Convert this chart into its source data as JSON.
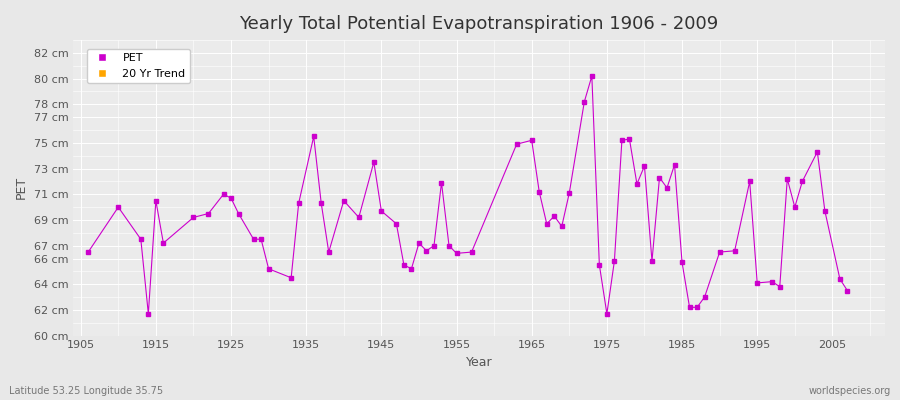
{
  "title": "Yearly Total Potential Evapotranspiration 1906 - 2009",
  "xlabel": "Year",
  "ylabel": "PET",
  "footer_left": "Latitude 53.25 Longitude 35.75",
  "footer_right": "worldspecies.org",
  "background_color": "#e8e8e8",
  "plot_bg_color": "#ebebeb",
  "grid_color": "#ffffff",
  "pet_color": "#cc00cc",
  "trend_color": "#ffa500",
  "ylim": [
    60,
    83
  ],
  "yticks": [
    60,
    62,
    64,
    66,
    67,
    69,
    71,
    73,
    75,
    77,
    78,
    80,
    82
  ],
  "ytick_labels": [
    "60 cm",
    "62 cm",
    "64 cm",
    "66 cm",
    "67 cm",
    "69 cm",
    "71 cm",
    "73 cm",
    "75 cm",
    "77 cm",
    "78 cm",
    "80 cm",
    "82 cm"
  ],
  "xlim": [
    1904,
    2012
  ],
  "xticks": [
    1905,
    1915,
    1925,
    1935,
    1945,
    1955,
    1965,
    1975,
    1985,
    1995,
    2005
  ],
  "years": [
    1906,
    1910,
    1913,
    1914,
    1915,
    1916,
    1920,
    1922,
    1924,
    1925,
    1926,
    1928,
    1929,
    1930,
    1933,
    1934,
    1936,
    1937,
    1938,
    1940,
    1942,
    1944,
    1945,
    1947,
    1948,
    1949,
    1950,
    1951,
    1952,
    1953,
    1954,
    1955,
    1957,
    1963,
    1965,
    1966,
    1967,
    1968,
    1969,
    1970,
    1972,
    1973,
    1974,
    1975,
    1976,
    1977,
    1978,
    1979,
    1980,
    1981,
    1982,
    1983,
    1984,
    1985,
    1986,
    1987,
    1988,
    1990,
    1992,
    1994,
    1995,
    1997,
    1998,
    1999,
    2000,
    2001,
    2003,
    2004,
    2006,
    2007
  ],
  "pet_values": [
    66.5,
    70.0,
    67.5,
    61.7,
    70.5,
    67.2,
    69.2,
    69.5,
    71.0,
    70.7,
    69.5,
    67.5,
    67.5,
    65.2,
    64.5,
    70.3,
    75.5,
    70.3,
    66.5,
    70.5,
    69.2,
    73.5,
    69.7,
    68.7,
    65.5,
    65.2,
    67.2,
    66.6,
    67.0,
    71.9,
    67.0,
    66.4,
    66.5,
    74.9,
    75.2,
    71.2,
    68.7,
    69.3,
    68.5,
    71.1,
    78.2,
    80.2,
    65.5,
    61.7,
    65.8,
    75.2,
    75.3,
    71.8,
    73.2,
    65.8,
    72.3,
    71.5,
    73.3,
    65.7,
    62.2,
    62.2,
    63.0,
    66.5,
    66.6,
    72.0,
    64.1,
    64.2,
    63.8,
    72.2,
    70.0,
    72.0,
    74.3,
    69.7,
    64.4,
    63.5
  ],
  "legend_pet": "PET",
  "legend_trend": "20 Yr Trend"
}
